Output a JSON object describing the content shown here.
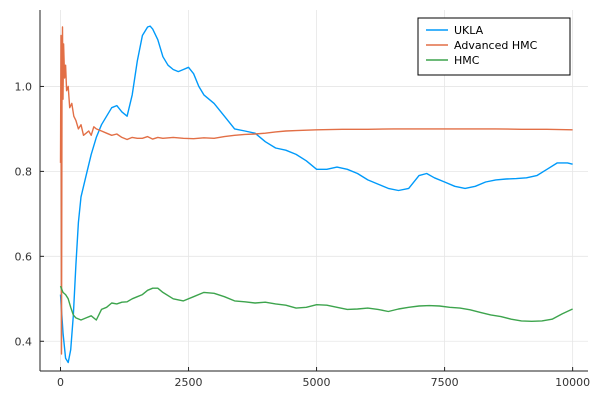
{
  "chart_data": {
    "type": "line",
    "title": "",
    "xlabel": "",
    "ylabel": "",
    "xlim": [
      -400,
      10300
    ],
    "ylim": [
      0.33,
      1.18
    ],
    "x_ticks": [
      0,
      2500,
      5000,
      7500,
      10000
    ],
    "x_tick_labels": [
      "0",
      "2500",
      "5000",
      "7500",
      "10000"
    ],
    "y_ticks": [
      0.4,
      0.6,
      0.8,
      1.0
    ],
    "y_tick_labels": [
      "0.4",
      "0.6",
      "0.8",
      "1.0"
    ],
    "grid": true,
    "legend_position": "top-right",
    "series": [
      {
        "name": "UKLA",
        "color": "#009AFA",
        "x": [
          0,
          50,
          100,
          150,
          200,
          250,
          300,
          350,
          400,
          500,
          600,
          700,
          800,
          900,
          1000,
          1100,
          1200,
          1300,
          1400,
          1500,
          1600,
          1700,
          1750,
          1800,
          1900,
          2000,
          2100,
          2200,
          2300,
          2400,
          2500,
          2600,
          2700,
          2800,
          3000,
          3200,
          3400,
          3600,
          3800,
          4000,
          4200,
          4400,
          4600,
          4800,
          5000,
          5200,
          5400,
          5600,
          5800,
          6000,
          6200,
          6400,
          6600,
          6800,
          7000,
          7150,
          7300,
          7500,
          7700,
          7900,
          8100,
          8300,
          8500,
          8700,
          8900,
          9100,
          9300,
          9500,
          9700,
          9900,
          10000
        ],
        "y": [
          0.51,
          0.42,
          0.36,
          0.35,
          0.38,
          0.46,
          0.58,
          0.68,
          0.74,
          0.79,
          0.84,
          0.88,
          0.91,
          0.93,
          0.95,
          0.955,
          0.94,
          0.93,
          0.98,
          1.06,
          1.12,
          1.14,
          1.142,
          1.135,
          1.11,
          1.07,
          1.05,
          1.04,
          1.035,
          1.04,
          1.045,
          1.03,
          1.0,
          0.98,
          0.96,
          0.93,
          0.9,
          0.895,
          0.89,
          0.87,
          0.855,
          0.85,
          0.84,
          0.825,
          0.805,
          0.805,
          0.81,
          0.805,
          0.795,
          0.78,
          0.77,
          0.76,
          0.755,
          0.76,
          0.79,
          0.795,
          0.785,
          0.775,
          0.765,
          0.76,
          0.765,
          0.775,
          0.78,
          0.782,
          0.783,
          0.785,
          0.79,
          0.805,
          0.82,
          0.82,
          0.817
        ]
      },
      {
        "name": "Advanced HMC",
        "color": "#E26F46",
        "x": [
          0,
          10,
          20,
          30,
          40,
          50,
          60,
          70,
          80,
          100,
          120,
          150,
          180,
          220,
          260,
          300,
          350,
          400,
          450,
          500,
          550,
          600,
          650,
          700,
          800,
          900,
          1000,
          1100,
          1200,
          1300,
          1400,
          1500,
          1600,
          1700,
          1800,
          1900,
          2000,
          2200,
          2400,
          2600,
          2800,
          3000,
          3200,
          3400,
          3600,
          3800,
          4000,
          4200,
          4400,
          4600,
          4800,
          5000,
          5500,
          6000,
          6500,
          7000,
          7500,
          8000,
          8500,
          9000,
          9500,
          10000
        ],
        "y": [
          0.82,
          1.12,
          0.37,
          0.98,
          1.14,
          0.97,
          1.1,
          1.06,
          1.02,
          1.05,
          0.99,
          1.0,
          0.95,
          0.96,
          0.93,
          0.92,
          0.9,
          0.91,
          0.885,
          0.89,
          0.895,
          0.885,
          0.905,
          0.9,
          0.895,
          0.89,
          0.885,
          0.888,
          0.88,
          0.875,
          0.88,
          0.878,
          0.878,
          0.882,
          0.876,
          0.88,
          0.878,
          0.88,
          0.878,
          0.877,
          0.879,
          0.878,
          0.882,
          0.885,
          0.887,
          0.888,
          0.89,
          0.893,
          0.895,
          0.896,
          0.897,
          0.898,
          0.899,
          0.899,
          0.9,
          0.9,
          0.9,
          0.9,
          0.9,
          0.899,
          0.899,
          0.898
        ]
      },
      {
        "name": "HMC",
        "color": "#3DA44D",
        "x": [
          0,
          50,
          100,
          150,
          200,
          250,
          300,
          400,
          500,
          600,
          700,
          800,
          900,
          1000,
          1100,
          1200,
          1300,
          1400,
          1500,
          1600,
          1700,
          1800,
          1900,
          2000,
          2200,
          2400,
          2600,
          2800,
          3000,
          3200,
          3400,
          3600,
          3800,
          4000,
          4200,
          4400,
          4600,
          4800,
          5000,
          5200,
          5400,
          5600,
          5800,
          6000,
          6200,
          6400,
          6600,
          6800,
          7000,
          7200,
          7400,
          7600,
          7800,
          8000,
          8200,
          8400,
          8600,
          8800,
          9000,
          9200,
          9400,
          9600,
          9800,
          10000
        ],
        "y": [
          0.53,
          0.515,
          0.51,
          0.5,
          0.48,
          0.462,
          0.455,
          0.45,
          0.455,
          0.46,
          0.45,
          0.475,
          0.48,
          0.49,
          0.488,
          0.492,
          0.493,
          0.5,
          0.505,
          0.51,
          0.52,
          0.525,
          0.525,
          0.515,
          0.5,
          0.495,
          0.505,
          0.515,
          0.513,
          0.505,
          0.495,
          0.493,
          0.49,
          0.492,
          0.488,
          0.485,
          0.478,
          0.48,
          0.486,
          0.485,
          0.48,
          0.475,
          0.476,
          0.478,
          0.475,
          0.47,
          0.476,
          0.48,
          0.483,
          0.484,
          0.483,
          0.48,
          0.478,
          0.474,
          0.468,
          0.462,
          0.458,
          0.452,
          0.448,
          0.447,
          0.448,
          0.452,
          0.465,
          0.476
        ]
      }
    ]
  }
}
